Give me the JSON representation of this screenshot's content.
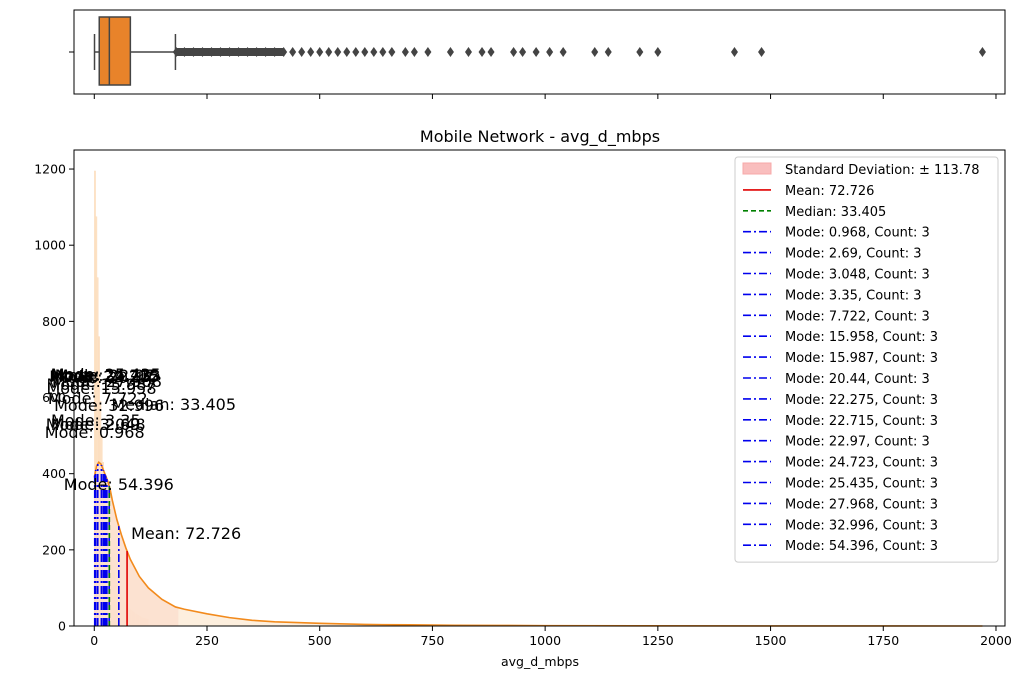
{
  "chart_data": {
    "type": "histogram-with-kde-and-boxplot",
    "title": "Mobile Network - avg_d_mbps",
    "xlabel": "avg_d_mbps",
    "ylabel": "",
    "xlim": [
      -45,
      2020
    ],
    "ylim": [
      0,
      1250
    ],
    "xticks": [
      0,
      250,
      500,
      750,
      1000,
      1250,
      1500,
      1750,
      2000
    ],
    "yticks": [
      0,
      200,
      400,
      600,
      800,
      1000,
      1200
    ],
    "colors": {
      "box": "#e8832a",
      "kde": "#f28a1c",
      "hist": "#fde3c8",
      "std_band": "#f7a8a8",
      "mean": "#e00000",
      "median": "#008000",
      "mode": "#0000ee",
      "outlier": "#444444"
    },
    "boxplot": {
      "whisker_low": 0.5,
      "q1": 11,
      "median": 33.4,
      "q3": 80,
      "whisker_high": 180,
      "outliers": [
        182,
        200,
        220,
        240,
        260,
        280,
        300,
        320,
        340,
        360,
        380,
        400,
        420,
        440,
        460,
        480,
        500,
        520,
        540,
        560,
        580,
        600,
        620,
        640,
        660,
        690,
        710,
        740,
        790,
        830,
        860,
        880,
        930,
        950,
        980,
        1010,
        1040,
        1110,
        1140,
        1210,
        1250,
        1420,
        1480,
        1970
      ]
    },
    "histogram": {
      "bin_width": 3,
      "heights": [
        1195,
        1075,
        915,
        760,
        590,
        500,
        430,
        370,
        310,
        265,
        230,
        200,
        180,
        160,
        140,
        125,
        112,
        100,
        90,
        82,
        75,
        68,
        62,
        57,
        52,
        48,
        44,
        41,
        38,
        35,
        32,
        30,
        28,
        26,
        24,
        22,
        21,
        20,
        19,
        18
      ]
    },
    "kde": {
      "x": [
        0,
        5,
        10,
        15,
        20,
        25,
        30,
        35,
        40,
        50,
        60,
        70,
        80,
        100,
        120,
        150,
        180,
        200,
        250,
        300,
        350,
        400,
        450,
        500,
        600,
        700,
        800,
        900,
        1000,
        1200,
        1500,
        1970
      ],
      "y": [
        390,
        420,
        430,
        425,
        410,
        395,
        380,
        360,
        330,
        280,
        240,
        205,
        175,
        130,
        100,
        70,
        50,
        44,
        32,
        22,
        15,
        11,
        9,
        7,
        4,
        3,
        2,
        1.5,
        1,
        0.5,
        0.2,
        0
      ]
    },
    "std_band": {
      "from": 0,
      "to": 186.5,
      "label": "Standard Deviation: ± 113.78"
    },
    "mean": {
      "value": 72.726,
      "label": "Mean: 72.726",
      "annotation": "Mean: 72.726"
    },
    "median": {
      "value": 33.405,
      "label": "Median: 33.405",
      "annotation": "Median: 33.405"
    },
    "modes": [
      {
        "value": 0.968,
        "label": "Mode: 0.968, Count: 3",
        "annotation": "Mode: 0.968"
      },
      {
        "value": 2.69,
        "label": "Mode: 2.69, Count: 3",
        "annotation": "Mode: 2.69"
      },
      {
        "value": 3.048,
        "label": "Mode: 3.048, Count: 3",
        "annotation": "Mode: 3.048"
      },
      {
        "value": 3.35,
        "label": "Mode: 3.35, Count: 3",
        "annotation": "Mode: 3.35"
      },
      {
        "value": 7.722,
        "label": "Mode: 7.722, Count: 3",
        "annotation": "Mode: 7.722"
      },
      {
        "value": 15.958,
        "label": "Mode: 15.958, Count: 3",
        "annotation": "Mode: 15.958"
      },
      {
        "value": 15.987,
        "label": "Mode: 15.987, Count: 3",
        "annotation": "Mode: 15.987"
      },
      {
        "value": 20.44,
        "label": "Mode: 20.44, Count: 3",
        "annotation": "Mode: 20.44"
      },
      {
        "value": 22.275,
        "label": "Mode: 22.275, Count: 3",
        "annotation": "Mode: 22.275"
      },
      {
        "value": 22.715,
        "label": "Mode: 22.715, Count: 3",
        "annotation": "Mode: 22.715"
      },
      {
        "value": 22.97,
        "label": "Mode: 22.97, Count: 3",
        "annotation": "Mode: 22.97"
      },
      {
        "value": 24.723,
        "label": "Mode: 24.723, Count: 3",
        "annotation": "Mode: 24.723"
      },
      {
        "value": 25.435,
        "label": "Mode: 25.435, Count: 3",
        "annotation": "Mode: 25.435"
      },
      {
        "value": 27.968,
        "label": "Mode: 27.968, Count: 3",
        "annotation": "Mode: 27.968"
      },
      {
        "value": 32.996,
        "label": "Mode: 32.996, Count: 3",
        "annotation": "Mode: 32.996"
      },
      {
        "value": 54.396,
        "label": "Mode: 54.396, Count: 3",
        "annotation": "Mode: 54.396"
      }
    ]
  }
}
